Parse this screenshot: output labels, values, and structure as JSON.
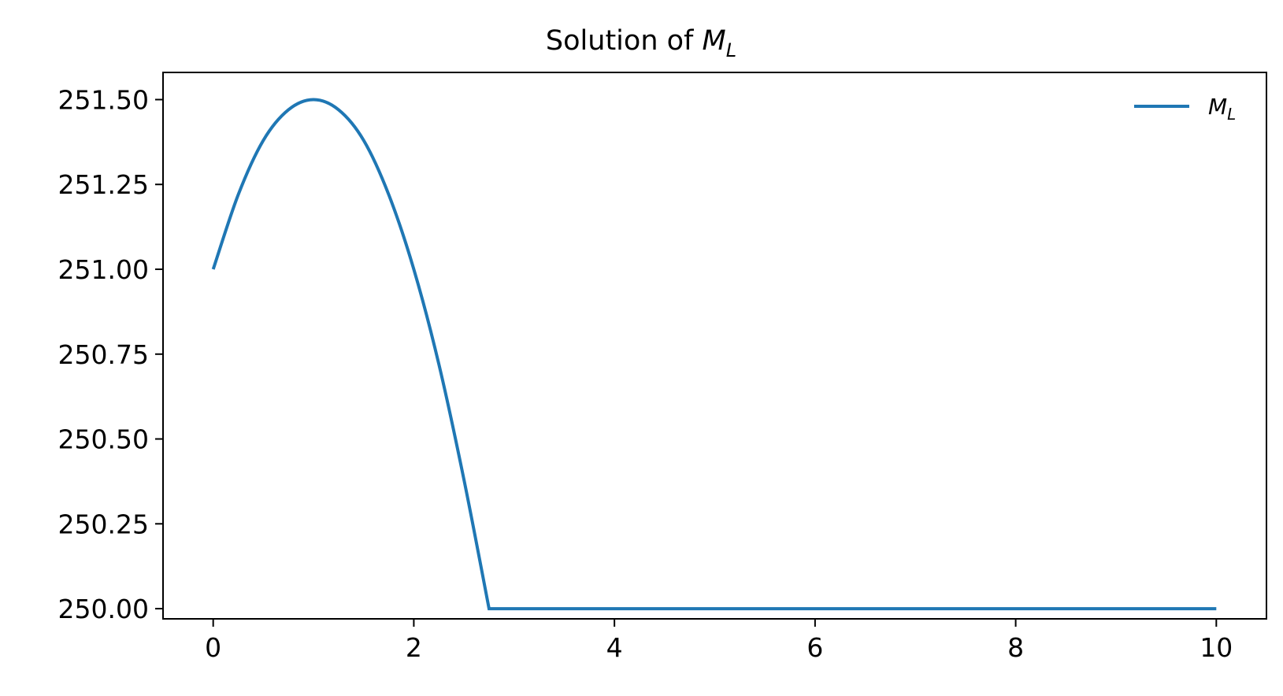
{
  "chart_data": {
    "type": "line",
    "title": {
      "prefix": "Solution of ",
      "symbol": "M",
      "subscript": "L"
    },
    "xlabel": "",
    "ylabel": "",
    "xlim": [
      -0.5,
      10.5
    ],
    "ylim": [
      249.97,
      251.58
    ],
    "xticks": [
      0,
      2,
      4,
      6,
      8,
      10
    ],
    "xtick_labels": [
      "0",
      "2",
      "4",
      "6",
      "8",
      "10"
    ],
    "yticks": [
      250.0,
      250.25,
      250.5,
      250.75,
      251.0,
      251.25,
      251.5
    ],
    "ytick_labels": [
      "250.00",
      "250.25",
      "250.50",
      "250.75",
      "251.00",
      "251.25",
      "251.50"
    ],
    "grid": false,
    "legend_position": "top-right",
    "series": [
      {
        "name_symbol": "M",
        "name_subscript": "L",
        "color": "#1f77b4",
        "x": [
          0.0,
          0.25,
          0.5,
          0.75,
          1.0,
          1.25,
          1.5,
          1.75,
          2.0,
          2.25,
          2.5,
          2.75,
          3.0,
          4.0,
          5.0,
          6.0,
          7.0,
          8.0,
          9.0,
          10.0
        ],
        "y": [
          251.0,
          251.22,
          251.38,
          251.47,
          251.5,
          251.47,
          251.38,
          251.22,
          251.0,
          250.72,
          250.38,
          250.0,
          250.0,
          250.0,
          250.0,
          250.0,
          250.0,
          250.0,
          250.0,
          250.0
        ]
      }
    ]
  }
}
